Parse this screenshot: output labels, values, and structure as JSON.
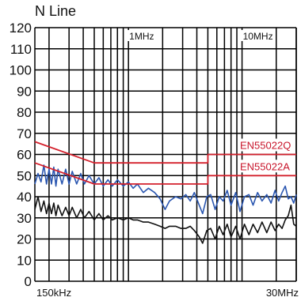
{
  "chart_data": {
    "type": "line",
    "title": "N Line",
    "xlabel": "",
    "ylabel": "",
    "x_scale": "log",
    "xlim_mhz": [
      0.15,
      30
    ],
    "ylim": [
      0,
      120
    ],
    "grid": true,
    "y_ticks": [
      "0",
      "10",
      "20",
      "30",
      "40",
      "50",
      "60",
      "70",
      "80",
      "90",
      "100",
      "110",
      "120"
    ],
    "x_tick_labels": [
      {
        "label": "150kHz",
        "mhz": 0.15
      },
      {
        "label": "1MHz",
        "mhz": 1
      },
      {
        "label": "10MHz",
        "mhz": 10
      },
      {
        "label": "30MHz",
        "mhz": 30
      }
    ],
    "series": [
      {
        "name": "EN55022Q",
        "role": "limit",
        "color": "#d4202c",
        "points": [
          [
            0.15,
            66
          ],
          [
            0.5,
            56
          ],
          [
            5,
            56
          ],
          [
            5,
            60
          ],
          [
            30,
            60
          ]
        ]
      },
      {
        "name": "EN55022A",
        "role": "limit",
        "color": "#d4202c",
        "points": [
          [
            0.15,
            56
          ],
          [
            0.5,
            46
          ],
          [
            5,
            46
          ],
          [
            5,
            50
          ],
          [
            30,
            50
          ]
        ]
      },
      {
        "name": "",
        "role": "measurement",
        "color": "#2a56b0",
        "points": [
          [
            0.15,
            46
          ],
          [
            0.16,
            51
          ],
          [
            0.17,
            47
          ],
          [
            0.18,
            55
          ],
          [
            0.19,
            46
          ],
          [
            0.2,
            53
          ],
          [
            0.21,
            46
          ],
          [
            0.22,
            54
          ],
          [
            0.23,
            45
          ],
          [
            0.24,
            53
          ],
          [
            0.26,
            46
          ],
          [
            0.28,
            53
          ],
          [
            0.3,
            46
          ],
          [
            0.32,
            52
          ],
          [
            0.35,
            46
          ],
          [
            0.38,
            51
          ],
          [
            0.41,
            46
          ],
          [
            0.45,
            50
          ],
          [
            0.5,
            46
          ],
          [
            0.55,
            49
          ],
          [
            0.6,
            45
          ],
          [
            0.66,
            48
          ],
          [
            0.72,
            45
          ],
          [
            0.8,
            48
          ],
          [
            0.9,
            45
          ],
          [
            1.0,
            47
          ],
          [
            1.1,
            44
          ],
          [
            1.2,
            46
          ],
          [
            1.35,
            42
          ],
          [
            1.5,
            44
          ],
          [
            1.7,
            42
          ],
          [
            1.9,
            39
          ],
          [
            2.1,
            34
          ],
          [
            2.3,
            38
          ],
          [
            2.6,
            40
          ],
          [
            2.9,
            39
          ],
          [
            3.2,
            41
          ],
          [
            3.5,
            38
          ],
          [
            3.8,
            42
          ],
          [
            4.2,
            36
          ],
          [
            4.5,
            32
          ],
          [
            4.9,
            40
          ],
          [
            5.3,
            41
          ],
          [
            5.8,
            34
          ],
          [
            6.3,
            40
          ],
          [
            6.8,
            38
          ],
          [
            7.4,
            43
          ],
          [
            8.0,
            36
          ],
          [
            8.8,
            42
          ],
          [
            9.6,
            33
          ],
          [
            10.5,
            40
          ],
          [
            11.5,
            41
          ],
          [
            12.5,
            36
          ],
          [
            13.7,
            42
          ],
          [
            15,
            38
          ],
          [
            16.5,
            41
          ],
          [
            18,
            37
          ],
          [
            19.5,
            43
          ],
          [
            21,
            38
          ],
          [
            22.5,
            42
          ],
          [
            24,
            45
          ],
          [
            25.5,
            39
          ],
          [
            27,
            40
          ],
          [
            28.5,
            37
          ],
          [
            30,
            41
          ]
        ]
      },
      {
        "name": "",
        "role": "measurement",
        "color": "#111111",
        "points": [
          [
            0.15,
            34
          ],
          [
            0.16,
            40
          ],
          [
            0.17,
            33
          ],
          [
            0.18,
            38
          ],
          [
            0.19,
            32
          ],
          [
            0.2,
            37
          ],
          [
            0.21,
            32
          ],
          [
            0.22,
            37
          ],
          [
            0.23,
            31
          ],
          [
            0.24,
            36
          ],
          [
            0.26,
            31
          ],
          [
            0.28,
            35
          ],
          [
            0.3,
            31
          ],
          [
            0.32,
            35
          ],
          [
            0.35,
            30
          ],
          [
            0.38,
            34
          ],
          [
            0.41,
            30
          ],
          [
            0.45,
            33
          ],
          [
            0.5,
            29
          ],
          [
            0.55,
            32
          ],
          [
            0.6,
            29
          ],
          [
            0.66,
            31
          ],
          [
            0.72,
            29
          ],
          [
            0.8,
            30
          ],
          [
            0.9,
            29
          ],
          [
            1.0,
            30
          ],
          [
            1.1,
            29
          ],
          [
            1.2,
            29
          ],
          [
            1.35,
            28
          ],
          [
            1.5,
            28
          ],
          [
            1.7,
            27
          ],
          [
            1.9,
            26
          ],
          [
            2.1,
            25
          ],
          [
            2.3,
            26
          ],
          [
            2.6,
            26
          ],
          [
            2.9,
            25
          ],
          [
            3.2,
            25
          ],
          [
            3.5,
            26
          ],
          [
            3.8,
            24
          ],
          [
            4.2,
            21
          ],
          [
            4.5,
            18
          ],
          [
            4.9,
            24
          ],
          [
            5.3,
            25
          ],
          [
            5.8,
            20
          ],
          [
            6.3,
            26
          ],
          [
            6.8,
            22
          ],
          [
            7.4,
            27
          ],
          [
            8.0,
            21
          ],
          [
            8.8,
            26
          ],
          [
            9.6,
            20
          ],
          [
            10.5,
            27
          ],
          [
            11.5,
            22
          ],
          [
            12.5,
            27
          ],
          [
            13.7,
            23
          ],
          [
            15,
            28
          ],
          [
            16.5,
            23
          ],
          [
            18,
            28
          ],
          [
            19.5,
            24
          ],
          [
            21,
            27
          ],
          [
            22.5,
            25
          ],
          [
            24,
            29
          ],
          [
            25.5,
            31
          ],
          [
            27,
            36
          ],
          [
            28.5,
            27
          ],
          [
            30,
            26
          ]
        ]
      }
    ]
  }
}
